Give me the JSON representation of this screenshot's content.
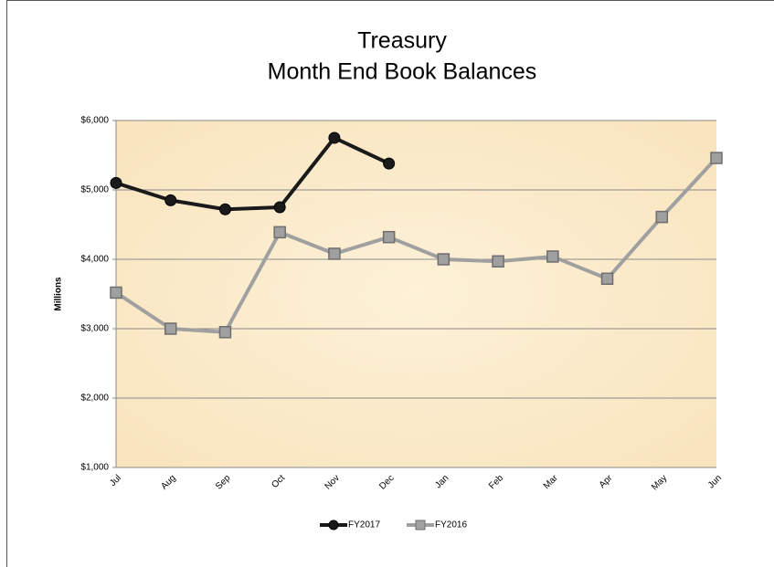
{
  "chart_data": {
    "type": "line",
    "title": [
      "Treasury",
      "Month End Book Balances"
    ],
    "y_label": "Millions",
    "categories": [
      "Jul",
      "Aug",
      "Sep",
      "Oct",
      "Nov",
      "Dec",
      "Jan",
      "Feb",
      "Mar",
      "Apr",
      "May",
      "Jun"
    ],
    "series": [
      {
        "name": "FY2017",
        "color": "#1a1a1a",
        "marker": "circle",
        "values": [
          5100,
          4850,
          4720,
          4750,
          5750,
          5380,
          null,
          null,
          null,
          null,
          null,
          null
        ]
      },
      {
        "name": "FY2016",
        "color": "#a0a0a0",
        "marker": "square",
        "values": [
          3520,
          3000,
          2950,
          4390,
          4080,
          4320,
          4000,
          3970,
          4040,
          3720,
          4610,
          5460
        ]
      }
    ],
    "ylim": [
      1000,
      6000
    ],
    "yticks": [
      {
        "value": 1000,
        "label": "$1,000"
      },
      {
        "value": 2000,
        "label": "$2,000"
      },
      {
        "value": 3000,
        "label": "$3,000"
      },
      {
        "value": 4000,
        "label": "$4,000"
      },
      {
        "value": 5000,
        "label": "$5,000"
      },
      {
        "value": 6000,
        "label": "$6,000"
      }
    ],
    "grid": true,
    "legend": "bottom"
  }
}
